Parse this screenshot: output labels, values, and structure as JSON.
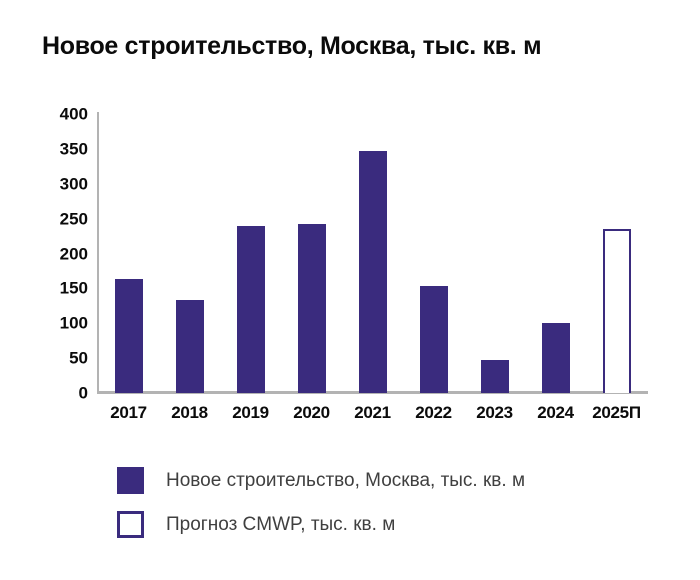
{
  "title": "Новое строительство, Москва, тыс. кв. м",
  "colors": {
    "bar_fill": "#3a2b7e",
    "bar_outline": "#3a2b7e",
    "axis_line": "#b3b3b3",
    "title_text": "#0b0b0b",
    "legend_text": "#3f3f3f",
    "background": "#ffffff"
  },
  "chart_data": {
    "type": "bar",
    "title": "Новое строительство, Москва, тыс. кв. м",
    "categories": [
      "2017",
      "2018",
      "2019",
      "2020",
      "2021",
      "2022",
      "2023",
      "2024",
      "2025П"
    ],
    "values": [
      163,
      133,
      240,
      243,
      347,
      153,
      48,
      100,
      235
    ],
    "bar_styles": [
      "filled",
      "filled",
      "filled",
      "filled",
      "filled",
      "filled",
      "filled",
      "filled",
      "outlined"
    ],
    "xlabel": "",
    "ylabel": "",
    "ylim": [
      0,
      400
    ],
    "yticks": [
      0,
      50,
      100,
      150,
      200,
      250,
      300,
      350,
      400
    ],
    "grid": false,
    "legend_position": "bottom"
  },
  "legend": {
    "items": [
      {
        "label": "Новое строительство, Москва, тыс. кв. м",
        "style": "filled"
      },
      {
        "label": "Прогноз CMWP, тыс. кв. м",
        "style": "outlined"
      }
    ]
  }
}
